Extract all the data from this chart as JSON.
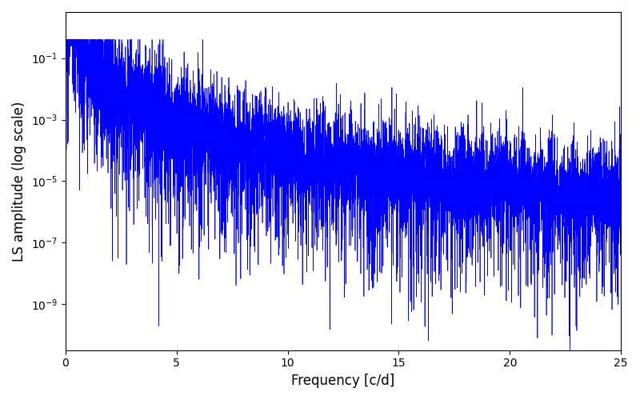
{
  "xlabel": "Frequency [c/d]",
  "ylabel": "LS amplitude (log scale)",
  "line_color": "#0000ff",
  "xlim": [
    0,
    25
  ],
  "ylim_log_min": -10.5,
  "ylim_log_max": 0.5,
  "xmin": 0.0,
  "xmax": 25.0,
  "n_points": 8000,
  "seed": 77,
  "figsize": [
    8.0,
    5.0
  ],
  "dpi": 100,
  "line_width": 0.5
}
